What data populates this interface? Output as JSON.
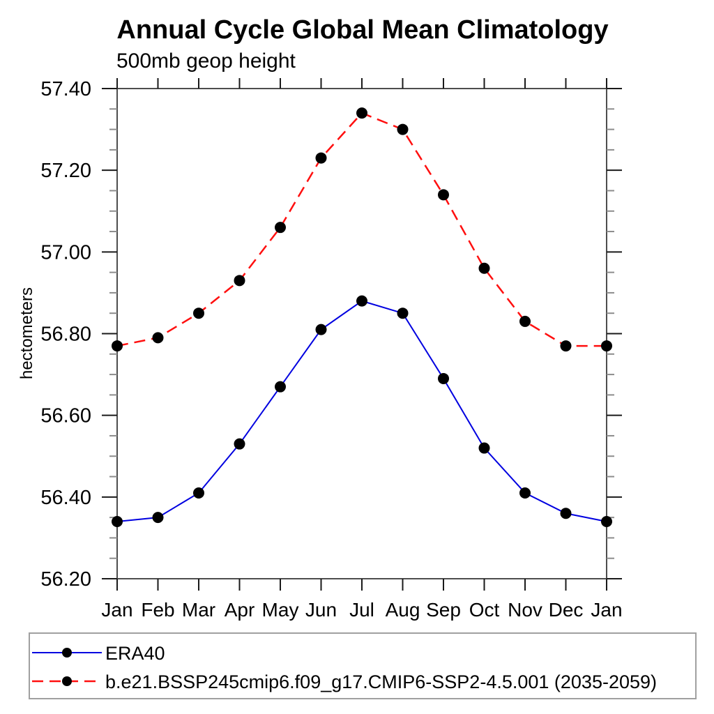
{
  "title": "Annual Cycle Global Mean Climatology",
  "subtitle": "500mb geop height",
  "ylabel": "hectometers",
  "colors": {
    "background": "#ffffff",
    "axis_line": "#4d4d4d",
    "major_tick": "#1a1a1a",
    "minor_tick": "#8c8c8c",
    "legend_border": "#a0a0a0",
    "marker": "#000000",
    "text": "#000000",
    "era40_line": "#0000e0",
    "model_line": "#ff0f0f"
  },
  "chart_data": {
    "type": "line",
    "title": "Annual Cycle Global Mean Climatology",
    "subtitle": "500mb geop height",
    "xlabel": "",
    "ylabel": "hectometers",
    "x_categories": [
      "Jan",
      "Feb",
      "Mar",
      "Apr",
      "May",
      "Jun",
      "Jul",
      "Aug",
      "Sep",
      "Oct",
      "Nov",
      "Dec",
      "Jan"
    ],
    "ylim": [
      56.2,
      57.4
    ],
    "ytick_major_step": 0.2,
    "ytick_minor_step": 0.05,
    "ytick_labels": [
      "56.20",
      "56.40",
      "56.60",
      "56.80",
      "57.00",
      "57.20",
      "57.40"
    ],
    "grid": "off",
    "legend_position": "bottom",
    "marker": "filled-black-circle",
    "series": [
      {
        "name": "ERA40",
        "line_style": "solid",
        "color": "#0000e0",
        "values": [
          56.34,
          56.35,
          56.41,
          56.53,
          56.67,
          56.81,
          56.88,
          56.85,
          56.69,
          56.52,
          56.41,
          56.36,
          56.34
        ]
      },
      {
        "name": "b.e21.BSSP245cmip6.f09_g17.CMIP6-SSP2-4.5.001 (2035-2059)",
        "line_style": "dashed",
        "color": "#ff0f0f",
        "values": [
          56.77,
          56.79,
          56.85,
          56.93,
          57.06,
          57.23,
          57.34,
          57.3,
          57.14,
          56.96,
          56.83,
          56.77,
          56.77
        ]
      }
    ]
  }
}
